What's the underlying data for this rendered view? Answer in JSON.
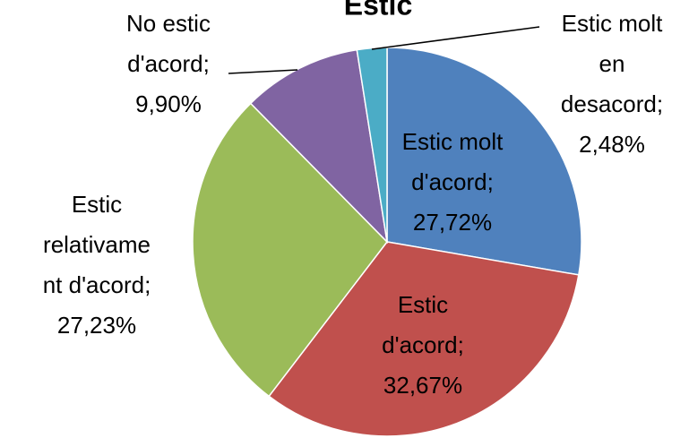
{
  "chart_data": {
    "type": "pie",
    "title": "Estic",
    "categories": [
      "Estic molt d'acord",
      "Estic d'acord",
      "Estic relativament d'acord",
      "No estic d'acord",
      "Estic molt en desacord"
    ],
    "values": [
      27.72,
      32.67,
      27.23,
      9.9,
      2.48
    ],
    "value_labels": [
      "Estic molt d'acord; 27,72%",
      "Estic d'acord; 32,67%",
      "Estic relativament d'acord; 27,23%",
      "No estic d'acord; 9,90%",
      "Estic molt en desacord; 2,48%"
    ],
    "colors": [
      "#4f81bd",
      "#c0504d",
      "#9bbb59",
      "#8064a2",
      "#4bacc6"
    ]
  }
}
